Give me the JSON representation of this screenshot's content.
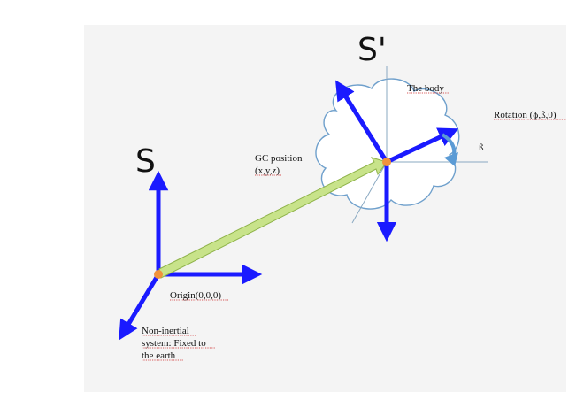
{
  "frames": {
    "inertial": {
      "name": "S",
      "origin_label": "Origin(0,0,0)",
      "description_lines": [
        "Non-inertial",
        "system: Fixed to",
        "the earth"
      ]
    },
    "body": {
      "name": "S'",
      "body_label": "The body",
      "rotation_label": "Rotation (ɸ,ß,0)",
      "beta_symbol": "ß"
    }
  },
  "vector": {
    "label_lines": [
      "GC position",
      "(x,y,z)"
    ]
  },
  "colors": {
    "axis_blue": "#1a1aff",
    "cloud_stroke": "#6fa0cc",
    "vector_fill": "#c8e38a",
    "vector_stroke": "#8fb34a",
    "origin_dot": "#f0923c",
    "rotation_arrow": "#5b9bd5",
    "thin_axis": "#8aa9c2",
    "panel_bg": "#f4f4f4"
  }
}
